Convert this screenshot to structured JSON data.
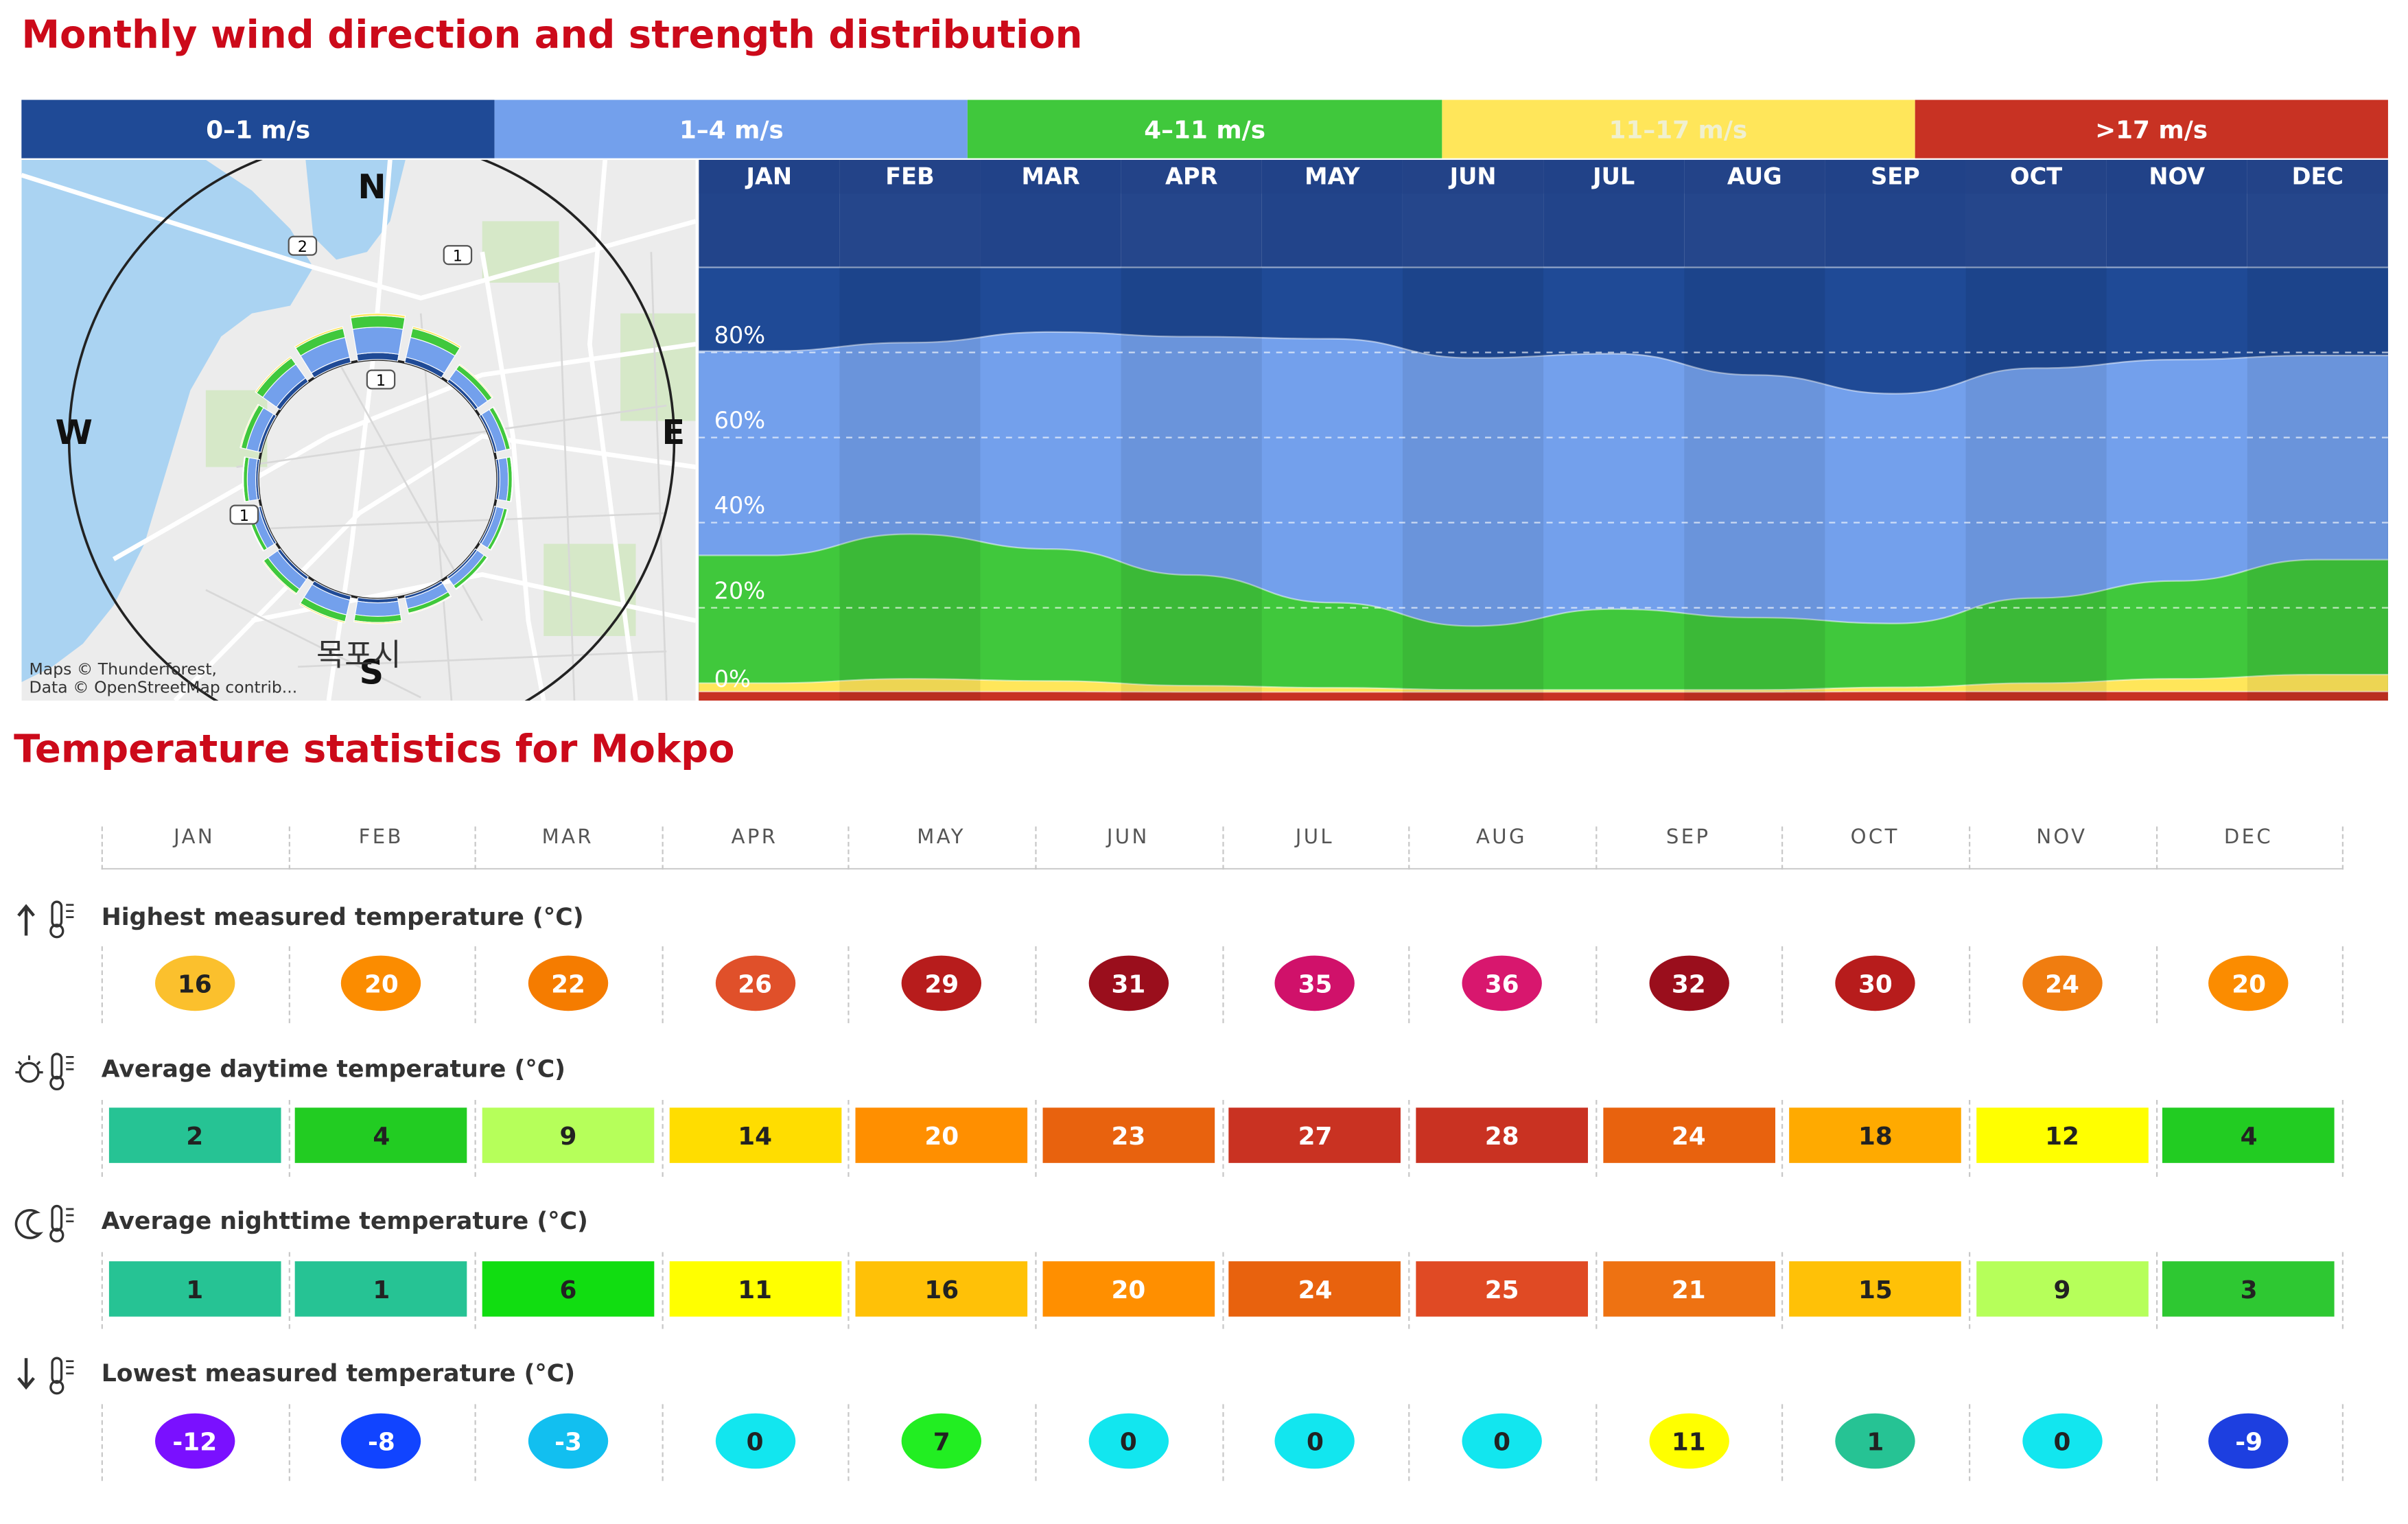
{
  "wind": {
    "title": "Monthly wind direction and strength distribution",
    "legend": [
      {
        "label": "0–1 m/s",
        "color": "#1f4a96"
      },
      {
        "label": "1–4 m/s",
        "color": "#73a0ec"
      },
      {
        "label": "4–11 m/s",
        "color": "#40c83c"
      },
      {
        "label": "11–17 m/s",
        "color": "#ffe65a"
      },
      {
        "label": ">17 m/s",
        "color": "#c83223"
      }
    ],
    "compass": {
      "n": "N",
      "e": "E",
      "s": "S",
      "w": "W"
    },
    "map_credit_line1": "Maps © Thunderforest,",
    "map_credit_line2": "Data © OpenStreetMap contrib...",
    "map_city": "목포시",
    "road_badges": [
      "2",
      "1",
      "1",
      "1"
    ]
  },
  "chart_data": {
    "type": "area",
    "title": "Monthly wind direction and strength distribution",
    "categories": [
      "JAN",
      "FEB",
      "MAR",
      "APR",
      "MAY",
      "JUN",
      "JUL",
      "AUG",
      "SEP",
      "OCT",
      "NOV",
      "DEC"
    ],
    "y_tick_labels": [
      "80%",
      "60%",
      "40%",
      "20%",
      "0%"
    ],
    "ylim": [
      0,
      100
    ],
    "unit": "%",
    "stacked": true,
    "series": [
      {
        "name": ">17 m/s",
        "values": [
          0.3,
          0.3,
          0.3,
          0.2,
          0.2,
          0.2,
          0.2,
          0.2,
          0.3,
          0.3,
          0.3,
          0.3
        ]
      },
      {
        "name": "11–17 m/s",
        "values": [
          2,
          3,
          2.5,
          1.5,
          1,
          0.5,
          0.5,
          0.5,
          1,
          2,
          3,
          4
        ]
      },
      {
        "name": "4–11 m/s",
        "values": [
          30,
          34,
          31,
          26,
          20,
          15,
          19,
          17,
          15,
          20,
          23,
          27
        ]
      },
      {
        "name": "1–4 m/s",
        "values": [
          48,
          45,
          51,
          56,
          62,
          63,
          60,
          57,
          54,
          54,
          52,
          48
        ]
      },
      {
        "name": "0–1 m/s",
        "values": [
          19.7,
          17.7,
          15.2,
          16.3,
          16.8,
          21.3,
          20.3,
          25.3,
          29.7,
          23.7,
          21.7,
          20.7
        ]
      }
    ]
  },
  "temperature": {
    "title": "Temperature statistics for Mokpo",
    "months": [
      "JAN",
      "FEB",
      "MAR",
      "APR",
      "MAY",
      "JUN",
      "JUL",
      "AUG",
      "SEP",
      "OCT",
      "NOV",
      "DEC"
    ],
    "rows": [
      {
        "label": "Highest measured temperature (°C)",
        "icon": "thermometer-up-icon",
        "shape": "circle",
        "values": [
          "16",
          "20",
          "22",
          "26",
          "29",
          "31",
          "35",
          "36",
          "32",
          "30",
          "24",
          "20"
        ],
        "colors": [
          "#fbc02d",
          "#fb8c00",
          "#f57c00",
          "#e0502a",
          "#b71c1c",
          "#9a0e1c",
          "#d0116a",
          "#d8176e",
          "#9a0e1c",
          "#b71c1c",
          "#f07d10",
          "#fb8c00"
        ],
        "text_colors": [
          "#222",
          "#fff",
          "#fff",
          "#fff",
          "#fff",
          "#fff",
          "#fff",
          "#fff",
          "#fff",
          "#fff",
          "#fff",
          "#fff"
        ]
      },
      {
        "label": "Average daytime temperature (°C)",
        "icon": "sun-thermometer-icon",
        "shape": "rect",
        "values": [
          "2",
          "4",
          "9",
          "14",
          "20",
          "23",
          "27",
          "28",
          "24",
          "18",
          "12",
          "4"
        ],
        "colors": [
          "#26c394",
          "#22cc22",
          "#b6ff5a",
          "#ffdd00",
          "#ff8f00",
          "#e8620e",
          "#c93222",
          "#c93222",
          "#e8620e",
          "#ffaa00",
          "#ffff00",
          "#22cc22"
        ],
        "text_colors": [
          "#222",
          "#222",
          "#222",
          "#222",
          "#fff",
          "#fff",
          "#fff",
          "#fff",
          "#fff",
          "#222",
          "#222",
          "#222"
        ]
      },
      {
        "label": "Average nighttime temperature (°C)",
        "icon": "moon-thermometer-icon",
        "shape": "rect",
        "values": [
          "1",
          "1",
          "6",
          "11",
          "16",
          "20",
          "24",
          "25",
          "21",
          "15",
          "9",
          "3"
        ],
        "colors": [
          "#26c394",
          "#26c394",
          "#11dd11",
          "#ffff00",
          "#ffc107",
          "#ff8f00",
          "#e8620e",
          "#e04a24",
          "#ee7212",
          "#ffc107",
          "#b6ff5a",
          "#2ec832"
        ],
        "text_colors": [
          "#222",
          "#222",
          "#222",
          "#222",
          "#222",
          "#fff",
          "#fff",
          "#fff",
          "#fff",
          "#222",
          "#222",
          "#222"
        ]
      },
      {
        "label": "Lowest measured temperature (°C)",
        "icon": "thermometer-down-icon",
        "shape": "circle",
        "values": [
          "-12",
          "-8",
          "-3",
          "0",
          "7",
          "0",
          "0",
          "0",
          "11",
          "1",
          "0",
          "-9"
        ],
        "colors": [
          "#7a10ff",
          "#1144ff",
          "#12bff0",
          "#12e6ef",
          "#22ee22",
          "#12e6ef",
          "#12e6ef",
          "#12e6ef",
          "#ffff00",
          "#26c394",
          "#12e6ef",
          "#1d3fe0"
        ],
        "text_colors": [
          "#fff",
          "#fff",
          "#fff",
          "#222",
          "#222",
          "#222",
          "#222",
          "#222",
          "#222",
          "#222",
          "#222",
          "#fff"
        ]
      }
    ]
  }
}
